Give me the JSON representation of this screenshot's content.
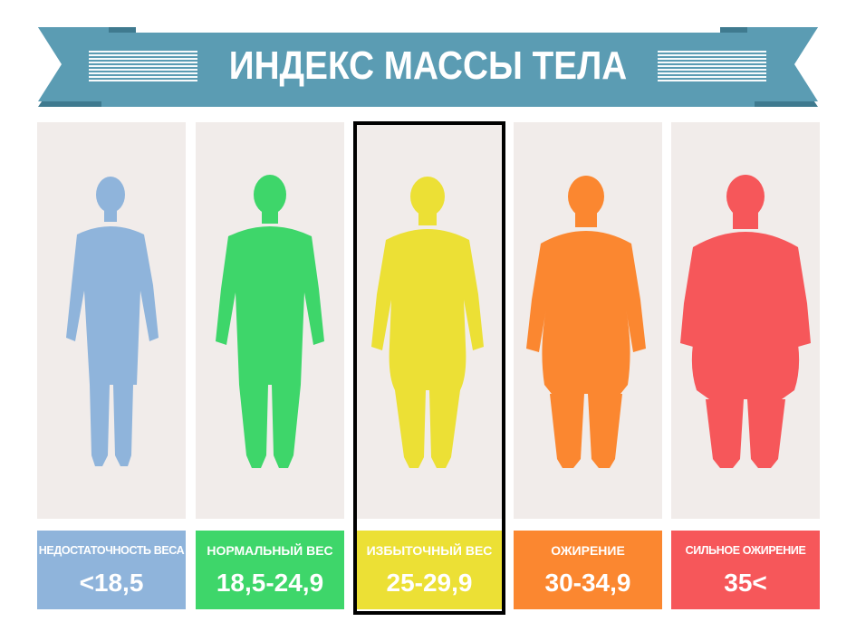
{
  "banner": {
    "title": "ИНДЕКС МАССЫ ТЕЛА",
    "color": "#5b9cb3",
    "shadow_color": "#3f7a8f"
  },
  "categories": [
    {
      "label": "НЕДОСТАТОЧНОСТЬ ВЕСА",
      "range": "<18,5",
      "color": "#8fb4db",
      "figure": "slim-person-silhouette"
    },
    {
      "label": "НОРМАЛЬНЫЙ ВЕС",
      "range": "18,5-24,9",
      "color": "#3ed66a",
      "figure": "athletic-person-silhouette"
    },
    {
      "label": "ИЗБЫТОЧНЫЙ ВЕС",
      "range": "25-29,9",
      "color": "#ece035",
      "figure": "overweight-person-silhouette"
    },
    {
      "label": "ОЖИРЕНИЕ",
      "range": "30-34,9",
      "color": "#fb8730",
      "figure": "obese-person-silhouette"
    },
    {
      "label": "СИЛЬНОЕ ОЖИРЕНИЕ",
      "range": "35<",
      "color": "#f6575a",
      "figure": "severely-obese-person-silhouette"
    }
  ],
  "highlighted_category": "ИЗБЫТОЧНЫЙ ВЕС",
  "card_background": "#f1ecea"
}
